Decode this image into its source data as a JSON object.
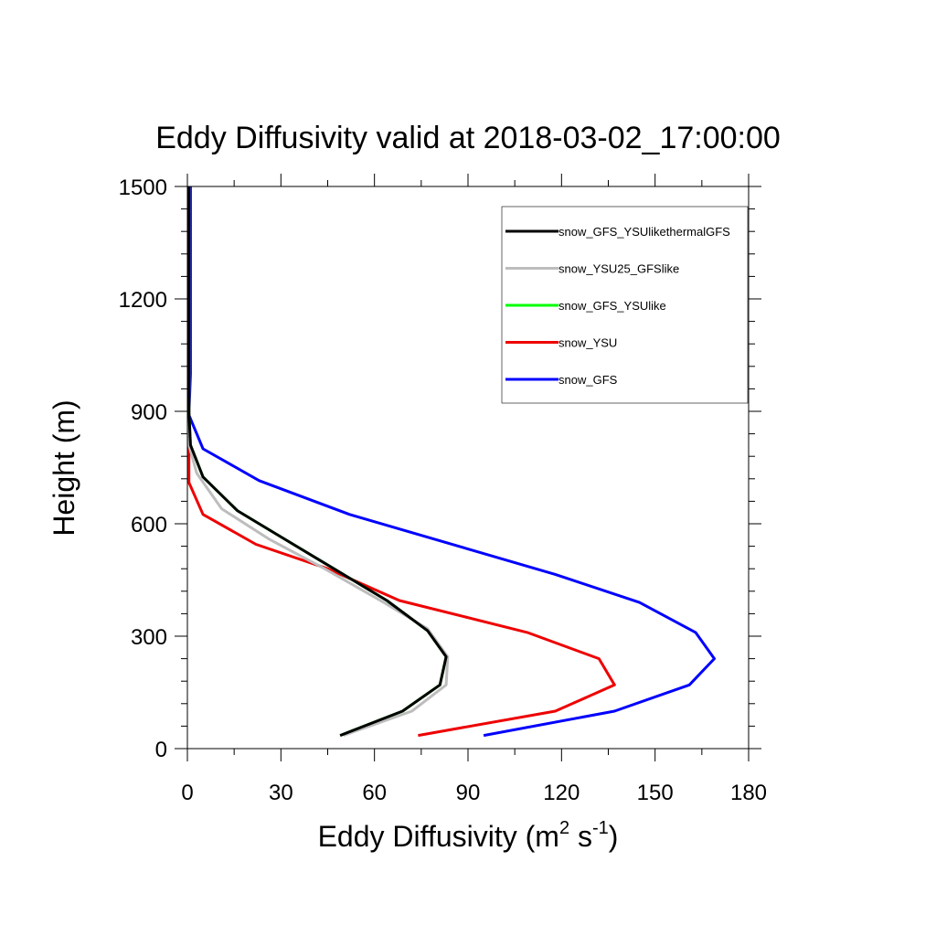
{
  "chart_data": {
    "type": "line",
    "title": "Eddy Diffusivity valid at 2018-03-02_17:00:00",
    "xlabel": {
      "prefix": "Eddy Diffusivity (m",
      "sup1": "2",
      "mid": " s",
      "sup2": "-1",
      "suffix": ")"
    },
    "ylabel": "Height (m)",
    "xlim": [
      0,
      180
    ],
    "ylim": [
      0,
      1500
    ],
    "xticks": [
      0,
      30,
      60,
      90,
      120,
      150,
      180
    ],
    "yticks": [
      0,
      300,
      600,
      900,
      1200,
      1500
    ],
    "xtick_labels": [
      "0",
      "30",
      "60",
      "90",
      "120",
      "150",
      "180"
    ],
    "ytick_labels": [
      "0",
      "300",
      "600",
      "900",
      "1200",
      "1500"
    ],
    "grid": false,
    "legend_position": "top-right",
    "series": [
      {
        "name": "snow_GFS_YSUlikethermalGFS",
        "color": "#000000",
        "points": [
          [
            49,
            35
          ],
          [
            69,
            100
          ],
          [
            81,
            170
          ],
          [
            83,
            245
          ],
          [
            77,
            315
          ],
          [
            64,
            395
          ],
          [
            47,
            480
          ],
          [
            32,
            555
          ],
          [
            16,
            635
          ],
          [
            5,
            725
          ],
          [
            1,
            810
          ],
          [
            0.5,
            900
          ],
          [
            0.5,
            1200
          ],
          [
            0.5,
            1500
          ]
        ]
      },
      {
        "name": "snow_YSU25_GFSlike",
        "color": "#bdbdbd",
        "points": [
          [
            50,
            35
          ],
          [
            72,
            100
          ],
          [
            83,
            170
          ],
          [
            83.5,
            245
          ],
          [
            77,
            320
          ],
          [
            63,
            390
          ],
          [
            44,
            480
          ],
          [
            26,
            560
          ],
          [
            11,
            640
          ],
          [
            3,
            735
          ],
          [
            0.5,
            810
          ],
          [
            0.5,
            900
          ],
          [
            0.5,
            1200
          ],
          [
            0.5,
            1500
          ]
        ]
      },
      {
        "name": "snow_GFS_YSUlike",
        "color": "#00ff00",
        "points": [
          [
            49,
            35
          ],
          [
            69,
            100
          ],
          [
            81,
            170
          ],
          [
            83,
            245
          ],
          [
            77,
            315
          ],
          [
            64,
            395
          ],
          [
            47,
            480
          ],
          [
            32,
            555
          ],
          [
            16,
            635
          ],
          [
            5,
            725
          ],
          [
            1,
            810
          ],
          [
            0.5,
            900
          ],
          [
            0.5,
            1200
          ],
          [
            0.5,
            1500
          ]
        ]
      },
      {
        "name": "snow_YSU",
        "color": "#ee0000",
        "points": [
          [
            74,
            35
          ],
          [
            118,
            100
          ],
          [
            137,
            170
          ],
          [
            132,
            240
          ],
          [
            109,
            310
          ],
          [
            68,
            395
          ],
          [
            45,
            480
          ],
          [
            22,
            545
          ],
          [
            5,
            625
          ],
          [
            0.5,
            710
          ],
          [
            0.5,
            800
          ],
          [
            0.5,
            900
          ],
          [
            0.5,
            1200
          ],
          [
            0.5,
            1500
          ]
        ]
      },
      {
        "name": "snow_GFS",
        "color": "#0000ff",
        "points": [
          [
            95,
            35
          ],
          [
            137,
            100
          ],
          [
            161,
            170
          ],
          [
            169,
            240
          ],
          [
            163,
            310
          ],
          [
            145,
            390
          ],
          [
            118,
            465
          ],
          [
            52,
            625
          ],
          [
            23,
            715
          ],
          [
            5,
            800
          ],
          [
            0.5,
            890
          ],
          [
            1,
            1000
          ],
          [
            1,
            1200
          ],
          [
            1,
            1500
          ]
        ]
      }
    ]
  }
}
